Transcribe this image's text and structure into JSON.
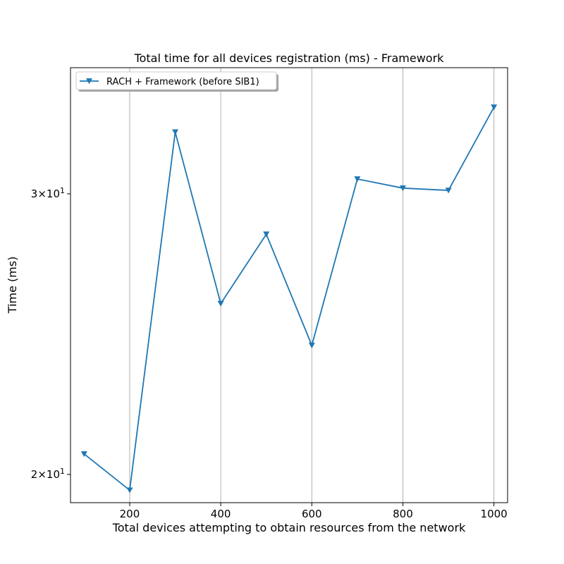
{
  "chart_data": {
    "type": "line",
    "title": "Total time for all devices registration (ms) - Framework",
    "xlabel": "Total devices attempting to obtain resources from the network",
    "ylabel": "Time (ms)",
    "x_scale": "linear",
    "y_scale": "log",
    "xlim": [
      70,
      1030
    ],
    "ylim": [
      19.2,
      36.0
    ],
    "x_ticks": [
      200,
      400,
      600,
      800,
      1000
    ],
    "x_tick_labels": [
      "200",
      "400",
      "600",
      "800",
      "1000"
    ],
    "y_ticks": [
      20,
      30
    ],
    "y_tick_labels": [
      {
        "base": "2",
        "exp": "1"
      },
      {
        "base": "3",
        "exp": "1"
      }
    ],
    "y_tick_times": "×10",
    "grid": "vertical lines at x ticks",
    "legend_position": "upper-left",
    "x": [
      100,
      200,
      300,
      400,
      500,
      600,
      700,
      800,
      900,
      1000
    ],
    "series": [
      {
        "name": "RACH + Framework (before SIB1)",
        "color": "#1f77b4",
        "marker": "triangle-down",
        "values": [
          20.6,
          19.55,
          32.8,
          25.6,
          28.3,
          24.1,
          30.65,
          30.25,
          30.15,
          34.0
        ]
      }
    ]
  }
}
